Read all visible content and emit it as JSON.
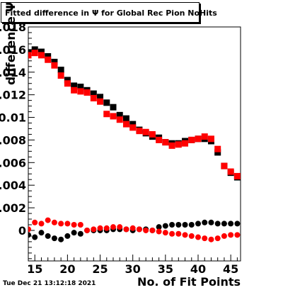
{
  "title": "Fitted difference in  Ψ  for Global Rec Pion NoHits",
  "footer": "Tue Dec 21 13:12:18 2021",
  "chart_data": {
    "type": "scatter",
    "title": "Fitted difference in  Ψ  for Global Rec Pion NoHits",
    "xlabel": "No. of Fit Points",
    "ylabel": "difference  Ψ",
    "xlim": [
      14,
      46.5
    ],
    "ylim": [
      -0.0027,
      0.018
    ],
    "xticks": [
      15,
      20,
      25,
      30,
      35,
      40,
      45
    ],
    "yticks": [
      0,
      0.002,
      0.004,
      0.006,
      0.008,
      0.01,
      0.012,
      0.014,
      0.016,
      0.018
    ],
    "ytick_labels": [
      "0",
      "0.002",
      "0.004",
      "0.006",
      "0.008",
      "0.01",
      "0.012",
      "0.014",
      "0.016",
      "0.018"
    ],
    "grid": false,
    "legend": "none",
    "x": [
      14,
      15,
      16,
      17,
      18,
      19,
      20,
      21,
      22,
      23,
      24,
      25,
      26,
      27,
      28,
      29,
      30,
      31,
      32,
      33,
      34,
      35,
      36,
      37,
      38,
      39,
      40,
      41,
      42,
      43,
      44,
      45,
      46
    ],
    "series": [
      {
        "color": "#000000",
        "values": [
          0.0157,
          0.016,
          0.0158,
          0.0154,
          0.0149,
          0.0142,
          0.0133,
          0.0128,
          0.0127,
          0.0124,
          0.0121,
          0.0118,
          0.0113,
          0.0109,
          0.0102,
          0.0099,
          0.0094,
          0.0089,
          0.0086,
          0.0083,
          0.0082,
          0.0078,
          0.0077,
          0.0077,
          0.0079,
          0.008,
          0.0081,
          0.0081,
          0.0079,
          0.0069,
          0.0057,
          0.0051,
          0.0047
        ]
      },
      {
        "color": "#ff0000",
        "values": [
          0.0155,
          0.0157,
          0.0155,
          0.0151,
          0.0146,
          0.0137,
          0.013,
          0.0124,
          0.0123,
          0.0122,
          0.0117,
          0.0114,
          0.0103,
          0.0101,
          0.0098,
          0.0094,
          0.0091,
          0.0088,
          0.0087,
          0.0085,
          0.008,
          0.0078,
          0.0075,
          0.0076,
          0.0077,
          0.008,
          0.0081,
          0.0083,
          0.0081,
          0.0072,
          0.0057,
          0.0052,
          0.0048
        ]
      },
      {
        "color": "#000000",
        "values": [
          -0.0004,
          -0.0006,
          -0.0002,
          -0.0005,
          -0.0007,
          -0.0008,
          -0.0005,
          -0.0002,
          -0.0003,
          0.0,
          0.0,
          0.0,
          0.0,
          0.0001,
          0.0001,
          0.0001,
          0.0,
          0.0001,
          0.0001,
          0.0,
          0.0003,
          0.0004,
          0.0005,
          0.0005,
          0.0005,
          0.0005,
          0.0006,
          0.0007,
          0.0007,
          0.0006,
          0.0006,
          0.0006,
          0.0006
        ]
      },
      {
        "color": "#ff0000",
        "values": [
          0.0001,
          0.0007,
          0.0006,
          0.0009,
          0.0007,
          0.0006,
          0.0006,
          0.0005,
          0.0005,
          0.0,
          0.0001,
          0.0002,
          0.0002,
          0.0003,
          0.0003,
          0.0001,
          0.0002,
          0.0001,
          0.0,
          0.0,
          -0.0001,
          -0.0002,
          -0.0003,
          -0.0003,
          -0.0004,
          -0.0005,
          -0.0006,
          -0.0007,
          -0.0008,
          -0.0007,
          -0.0005,
          -0.0004,
          -0.0004
        ]
      }
    ]
  }
}
